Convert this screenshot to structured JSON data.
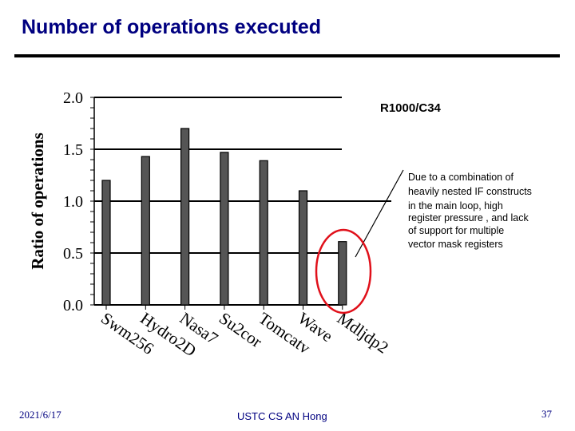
{
  "slide": {
    "title": "Number of operations executed",
    "footer": {
      "date": "2021/6/17",
      "center": "USTC CS AN Hong",
      "page": "37"
    }
  },
  "chart_data": {
    "type": "bar",
    "title": "R1000/C34",
    "ylabel": "Ratio of operations",
    "xlabel": "",
    "categories": [
      "Swm256",
      "Hydro2D",
      "Nasa7",
      "Su2cor",
      "Tomcatv",
      "Wave",
      "Mdljdp2"
    ],
    "values": [
      1.2,
      1.43,
      1.7,
      1.47,
      1.39,
      1.1,
      0.61
    ],
    "ylim": [
      0,
      2.0
    ],
    "yticks": [
      0,
      0.5,
      1.0,
      1.5,
      2.0
    ],
    "ytick_labels": [
      "0.0",
      "0.5",
      "1.0",
      "1.5",
      "2.0"
    ],
    "grid": true,
    "bar_color": "#555555",
    "annotation": {
      "text": [
        "Due to a combination of",
        "heavily nested IF constructs",
        "in the main loop, high",
        "register pressure , and lack",
        "of support for multiple",
        "vector mask registers"
      ],
      "highlight_category": "Mdljdp2",
      "highlight_color": "#e0101a"
    }
  }
}
